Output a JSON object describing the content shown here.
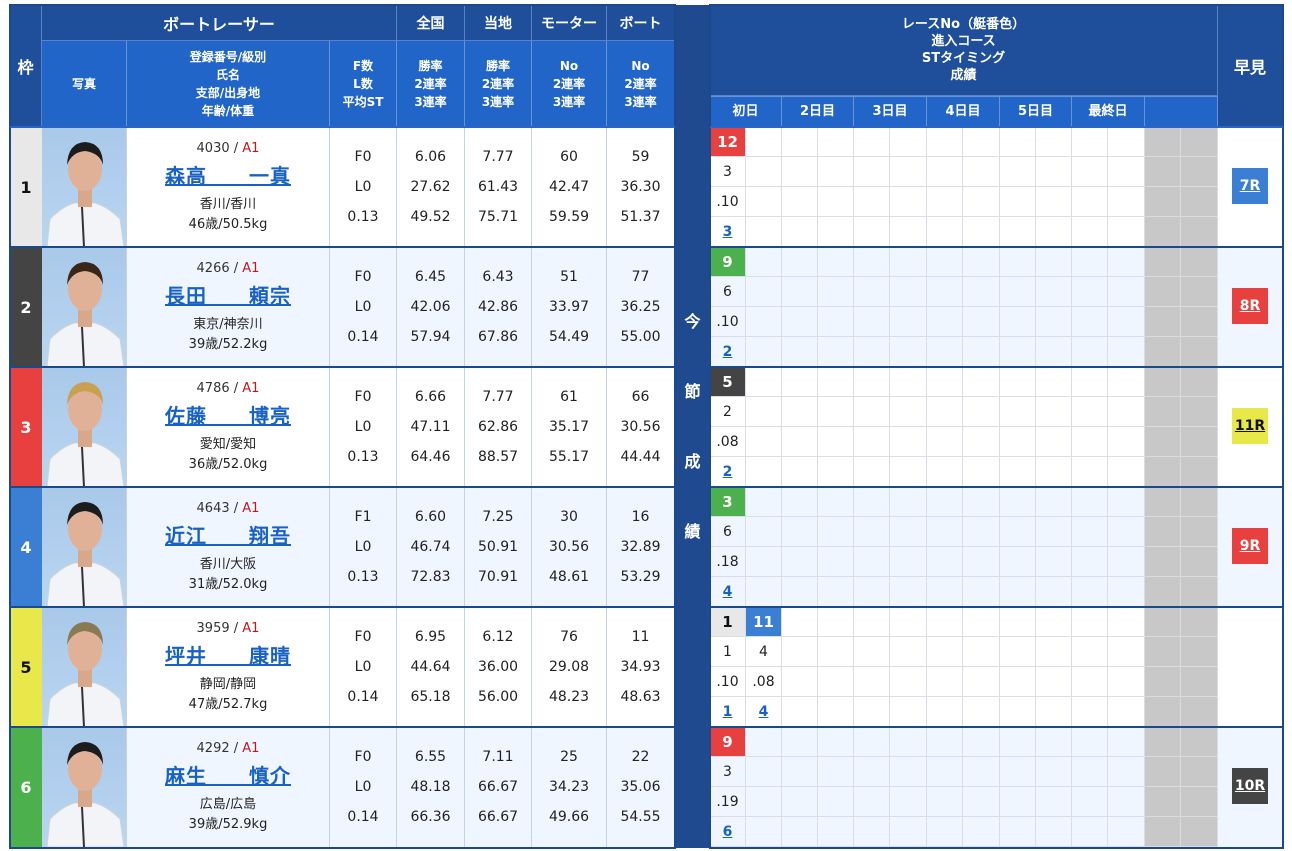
{
  "header": {
    "waku": "枠",
    "boat_racer": "ボートレーサー",
    "photo": "写真",
    "profile_lines": [
      "登録番号/級別",
      "氏名",
      "支部/出身地",
      "年齢/体重"
    ],
    "fl_lines": [
      "F数",
      "L数",
      "平均ST"
    ],
    "zenkoku": "全国",
    "touchi": "当地",
    "motor": "モーター",
    "boat": "ボート",
    "rate_lines": [
      "勝率",
      "2連率",
      "3連率"
    ],
    "no_lines": [
      "No",
      "2連率",
      "3連率"
    ],
    "results_lines": [
      "レースNo（艇番色）",
      "進入コース",
      "STタイミング",
      "成績"
    ],
    "days": [
      "初日",
      "2日目",
      "3日目",
      "4日目",
      "5日目",
      "最終日",
      ""
    ],
    "hayami": "早見",
    "konsetsu": [
      "今",
      "節",
      "成",
      "績"
    ]
  },
  "colors": {
    "waku_1": "#e8e8e8",
    "waku_2": "#444444",
    "waku_3": "#e8403e",
    "waku_4": "#3b7fd4",
    "waku_5": "#e8e84a",
    "waku_6": "#4cb14c",
    "header_dark": "#1f4f9a",
    "header_mid": "#2265c8",
    "link": "#1862c6",
    "class_red": "#c4161c"
  },
  "racers": [
    {
      "waku": "1",
      "reg": "4030",
      "class": "A1",
      "name": "森高　　一真",
      "branch": "香川/香川",
      "age_weight": "46歳/50.5kg",
      "f": "F0",
      "l": "L0",
      "st": "0.13",
      "zenkoku": [
        "6.06",
        "27.62",
        "49.52"
      ],
      "touchi": [
        "7.77",
        "61.43",
        "75.71"
      ],
      "motor": [
        "60",
        "42.47",
        "59.59"
      ],
      "boat": [
        "59",
        "36.30",
        "51.37"
      ],
      "results": [
        {
          "race": "12",
          "race_color": "#e8403e",
          "race_text": "#ffffff",
          "course": "3",
          "st": ".10",
          "rank": "3"
        }
      ],
      "hayami": {
        "label": "7R",
        "bg": "#3b7fd4",
        "fg": "#ffffff"
      }
    },
    {
      "waku": "2",
      "reg": "4266",
      "class": "A1",
      "name": "長田　　頼宗",
      "branch": "東京/神奈川",
      "age_weight": "39歳/52.2kg",
      "f": "F0",
      "l": "L0",
      "st": "0.14",
      "zenkoku": [
        "6.45",
        "42.06",
        "57.94"
      ],
      "touchi": [
        "6.43",
        "42.86",
        "67.86"
      ],
      "motor": [
        "51",
        "33.97",
        "54.49"
      ],
      "boat": [
        "77",
        "36.25",
        "55.00"
      ],
      "results": [
        {
          "race": "9",
          "race_color": "#4cb14c",
          "race_text": "#ffffff",
          "course": "6",
          "st": ".10",
          "rank": "2"
        }
      ],
      "hayami": {
        "label": "8R",
        "bg": "#e8403e",
        "fg": "#ffffff"
      }
    },
    {
      "waku": "3",
      "reg": "4786",
      "class": "A1",
      "name": "佐藤　　博亮",
      "branch": "愛知/愛知",
      "age_weight": "36歳/52.0kg",
      "f": "F0",
      "l": "L0",
      "st": "0.13",
      "zenkoku": [
        "6.66",
        "47.11",
        "64.46"
      ],
      "touchi": [
        "7.77",
        "62.86",
        "88.57"
      ],
      "motor": [
        "61",
        "35.17",
        "55.17"
      ],
      "boat": [
        "66",
        "30.56",
        "44.44"
      ],
      "results": [
        {
          "race": "5",
          "race_color": "#444444",
          "race_text": "#ffffff",
          "course": "2",
          "st": ".08",
          "rank": "2"
        }
      ],
      "hayami": {
        "label": "11R",
        "bg": "#e8e84a",
        "fg": "#111111"
      }
    },
    {
      "waku": "4",
      "reg": "4643",
      "class": "A1",
      "name": "近江　　翔吾",
      "branch": "香川/大阪",
      "age_weight": "31歳/52.0kg",
      "f": "F1",
      "l": "L0",
      "st": "0.13",
      "zenkoku": [
        "6.60",
        "46.74",
        "72.83"
      ],
      "touchi": [
        "7.25",
        "50.91",
        "70.91"
      ],
      "motor": [
        "30",
        "30.56",
        "48.61"
      ],
      "boat": [
        "16",
        "32.89",
        "53.29"
      ],
      "results": [
        {
          "race": "3",
          "race_color": "#4cb14c",
          "race_text": "#ffffff",
          "course": "6",
          "st": ".18",
          "rank": "4"
        }
      ],
      "hayami": {
        "label": "9R",
        "bg": "#e8403e",
        "fg": "#ffffff"
      }
    },
    {
      "waku": "5",
      "reg": "3959",
      "class": "A1",
      "name": "坪井　　康晴",
      "branch": "静岡/静岡",
      "age_weight": "47歳/52.7kg",
      "f": "F0",
      "l": "L0",
      "st": "0.14",
      "zenkoku": [
        "6.95",
        "44.64",
        "65.18"
      ],
      "touchi": [
        "6.12",
        "36.00",
        "56.00"
      ],
      "motor": [
        "76",
        "29.08",
        "48.23"
      ],
      "boat": [
        "11",
        "34.93",
        "48.63"
      ],
      "results": [
        {
          "race": "1",
          "race_color": "#e8e8e8",
          "race_text": "#111111",
          "course": "1",
          "st": ".10",
          "rank": "1"
        },
        {
          "race": "11",
          "race_color": "#3b7fd4",
          "race_text": "#ffffff",
          "course": "4",
          "st": ".08",
          "rank": "4"
        }
      ],
      "hayami": null
    },
    {
      "waku": "6",
      "reg": "4292",
      "class": "A1",
      "name": "麻生　　慎介",
      "branch": "広島/広島",
      "age_weight": "39歳/52.9kg",
      "f": "F0",
      "l": "L0",
      "st": "0.14",
      "zenkoku": [
        "6.55",
        "48.18",
        "66.36"
      ],
      "touchi": [
        "7.11",
        "66.67",
        "66.67"
      ],
      "motor": [
        "25",
        "34.23",
        "49.66"
      ],
      "boat": [
        "22",
        "35.06",
        "54.55"
      ],
      "results": [
        {
          "race": "9",
          "race_color": "#e8403e",
          "race_text": "#ffffff",
          "course": "3",
          "st": ".19",
          "rank": "6"
        }
      ],
      "hayami": {
        "label": "10R",
        "bg": "#444444",
        "fg": "#ffffff"
      }
    }
  ]
}
